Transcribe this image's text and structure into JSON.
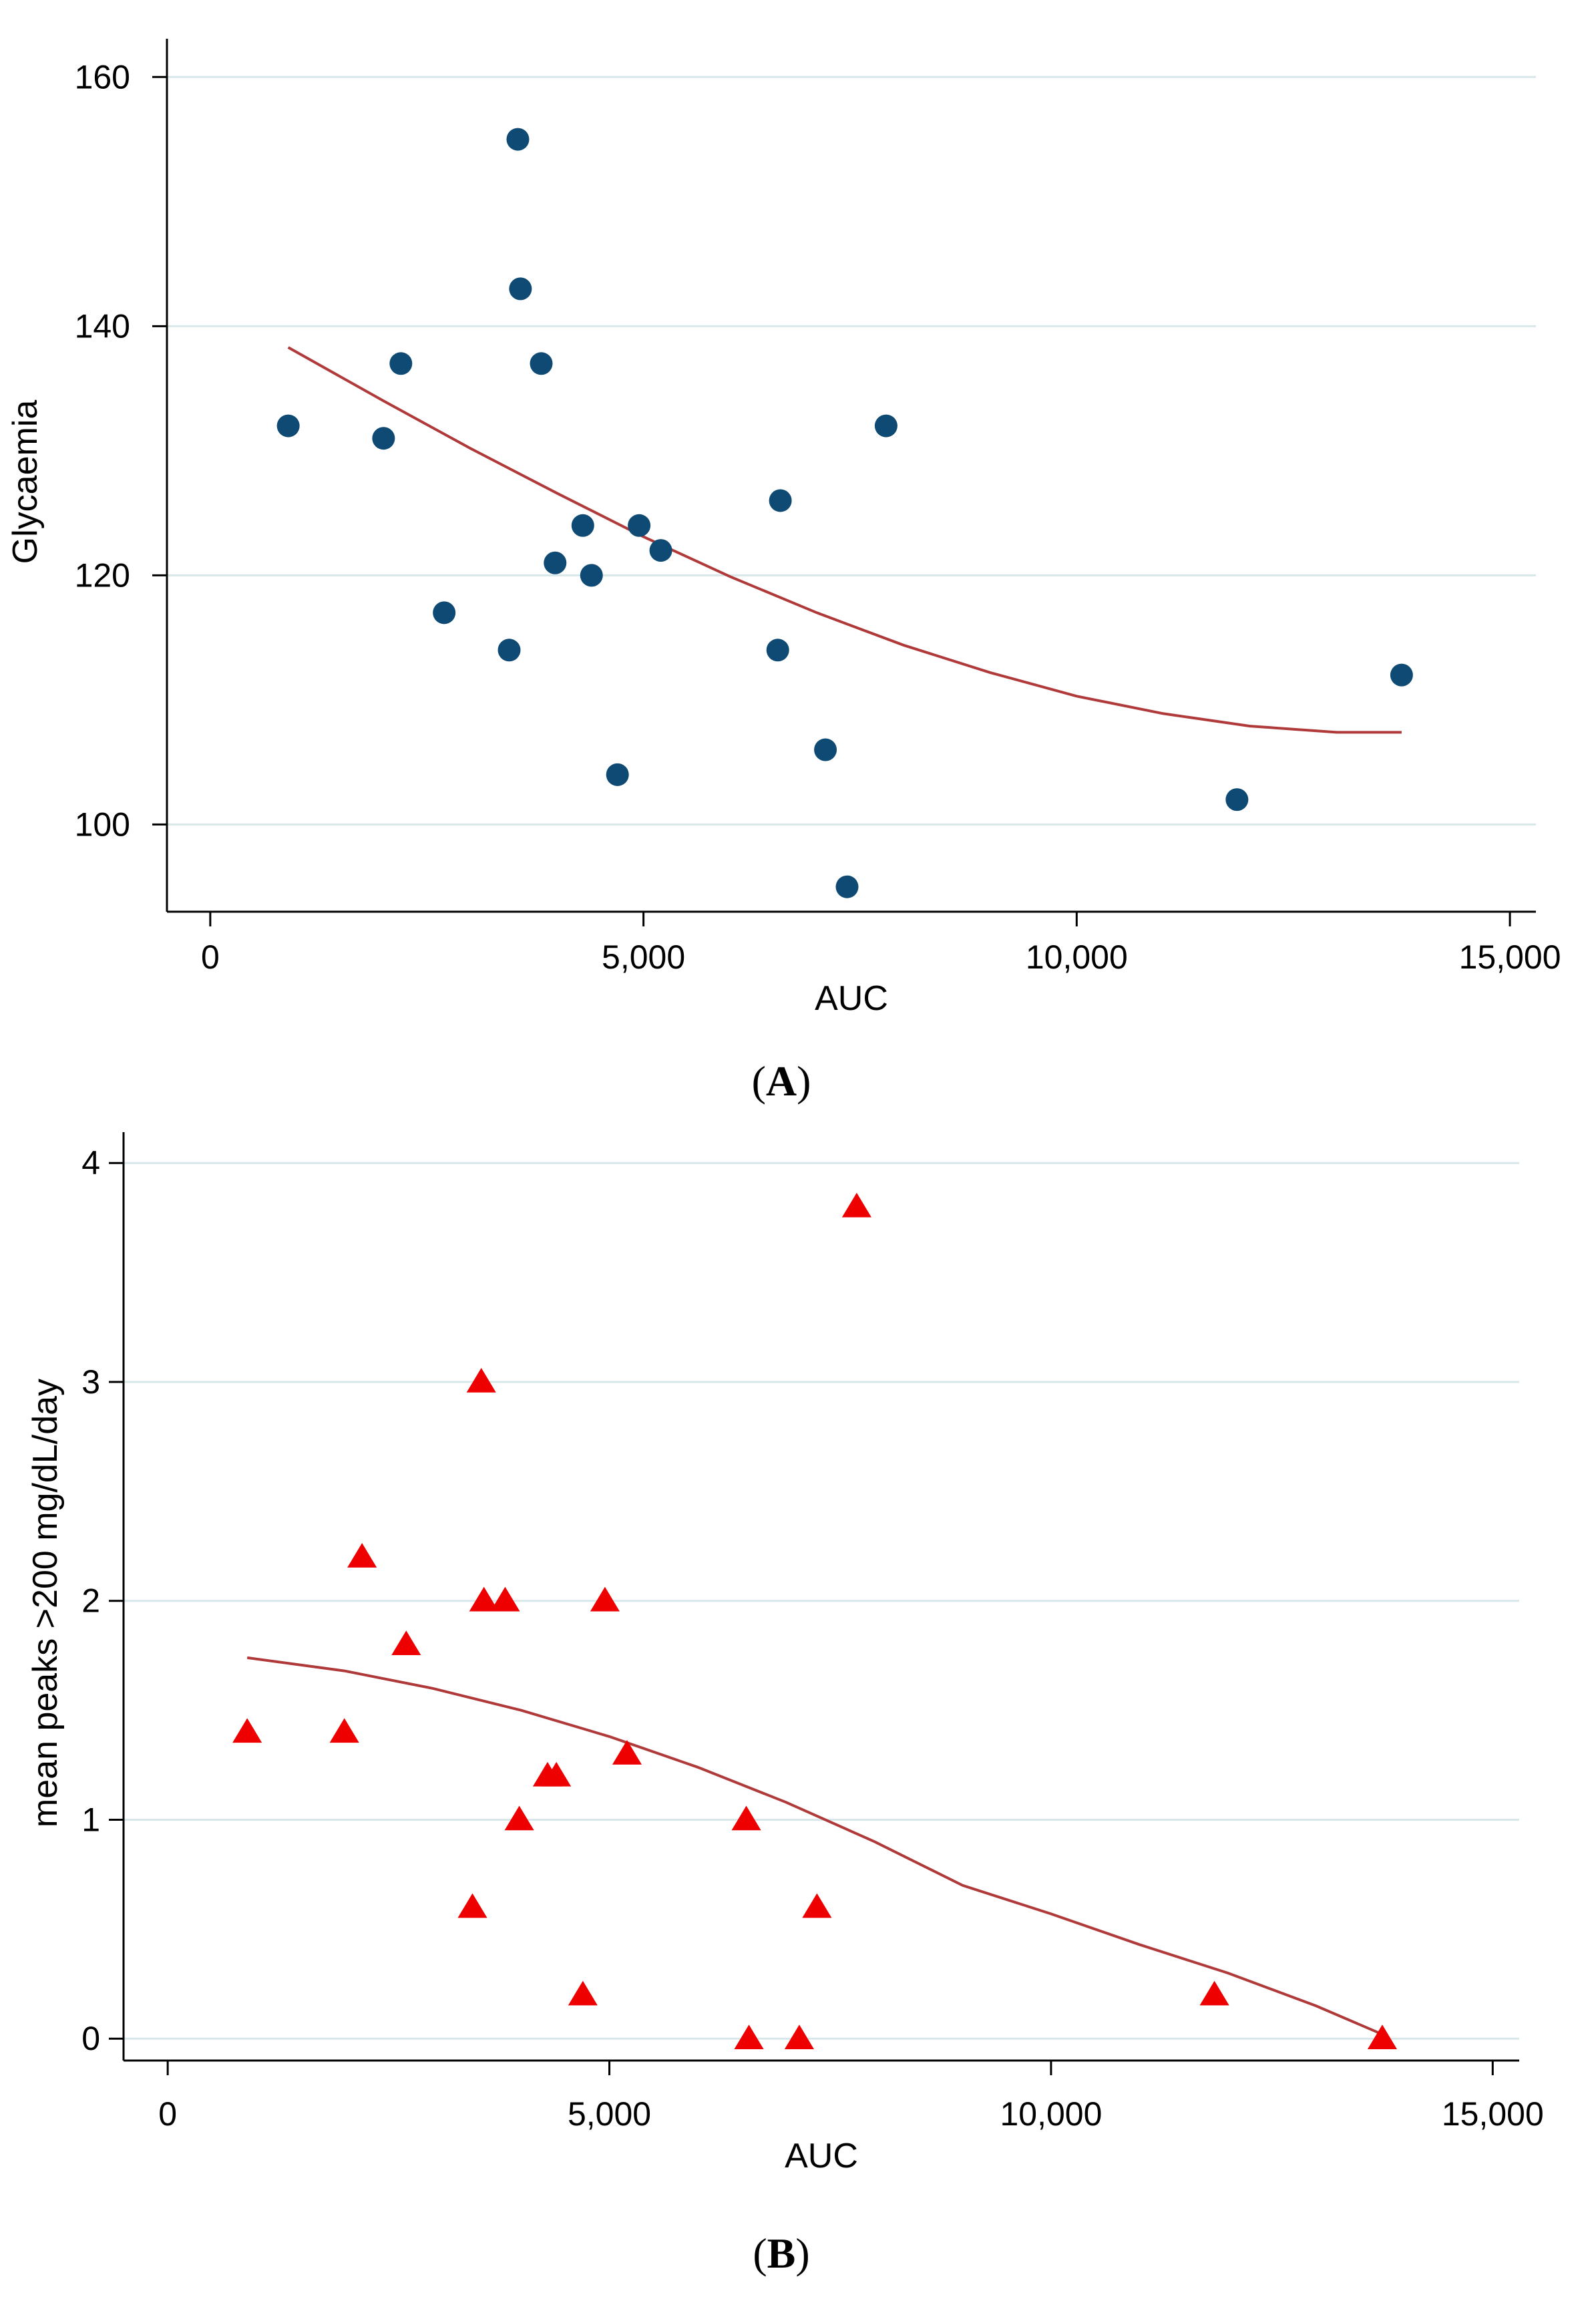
{
  "chart_data": [
    {
      "type": "scatter",
      "panel": "A",
      "xlabel": "AUC",
      "ylabel": "Glycaemia",
      "xlim": [
        -500,
        15300
      ],
      "ylim": [
        93,
        162
      ],
      "x_ticks": [
        0,
        5000,
        10000,
        15000
      ],
      "x_tick_labels": [
        "0",
        "5,000",
        "10,000",
        "15,000"
      ],
      "y_ticks": [
        100,
        120,
        140,
        160
      ],
      "y_tick_labels": [
        "100",
        "120",
        "140",
        "160"
      ],
      "grid": true,
      "marker": "circle",
      "marker_color": "#0e4a73",
      "line_color": "#b03a3a",
      "points": [
        {
          "x": 900,
          "y": 132
        },
        {
          "x": 2000,
          "y": 131
        },
        {
          "x": 2200,
          "y": 137
        },
        {
          "x": 2700,
          "y": 117
        },
        {
          "x": 3450,
          "y": 114
        },
        {
          "x": 3550,
          "y": 155
        },
        {
          "x": 3580,
          "y": 143
        },
        {
          "x": 3820,
          "y": 137
        },
        {
          "x": 3980,
          "y": 121
        },
        {
          "x": 4300,
          "y": 124
        },
        {
          "x": 4400,
          "y": 120
        },
        {
          "x": 4700,
          "y": 104
        },
        {
          "x": 4950,
          "y": 124
        },
        {
          "x": 5200,
          "y": 122
        },
        {
          "x": 6550,
          "y": 114
        },
        {
          "x": 6580,
          "y": 126
        },
        {
          "x": 7100,
          "y": 106
        },
        {
          "x": 7350,
          "y": 95
        },
        {
          "x": 7800,
          "y": 132
        },
        {
          "x": 11850,
          "y": 102
        },
        {
          "x": 13750,
          "y": 112
        }
      ],
      "fit_curve": [
        {
          "x": 900,
          "y": 138.3
        },
        {
          "x": 2000,
          "y": 134.0
        },
        {
          "x": 3000,
          "y": 130.2
        },
        {
          "x": 4000,
          "y": 126.6
        },
        {
          "x": 5000,
          "y": 123.1
        },
        {
          "x": 6000,
          "y": 119.9
        },
        {
          "x": 7000,
          "y": 117.0
        },
        {
          "x": 8000,
          "y": 114.4
        },
        {
          "x": 9000,
          "y": 112.2
        },
        {
          "x": 10000,
          "y": 110.3
        },
        {
          "x": 11000,
          "y": 108.9
        },
        {
          "x": 12000,
          "y": 107.9
        },
        {
          "x": 13000,
          "y": 107.4
        },
        {
          "x": 13750,
          "y": 107.4
        }
      ],
      "panel_label": "A"
    },
    {
      "type": "scatter",
      "panel": "B",
      "xlabel": "AUC",
      "ylabel": "mean peaks >200 mg/dL/day",
      "xlim": [
        -500,
        15300
      ],
      "ylim": [
        -0.1,
        4.08
      ],
      "x_ticks": [
        0,
        5000,
        10000,
        15000
      ],
      "x_tick_labels": [
        "0",
        "5,000",
        "10,000",
        "15,000"
      ],
      "y_ticks": [
        0,
        1,
        2,
        3,
        4
      ],
      "y_tick_labels": [
        "0",
        "1",
        "2",
        "3",
        "4"
      ],
      "grid": true,
      "marker": "triangle",
      "marker_color": "#ee0000",
      "line_color": "#b03a3a",
      "points": [
        {
          "x": 900,
          "y": 1.4
        },
        {
          "x": 2000,
          "y": 1.4
        },
        {
          "x": 2200,
          "y": 2.2
        },
        {
          "x": 2700,
          "y": 1.8
        },
        {
          "x": 3450,
          "y": 0.6
        },
        {
          "x": 3550,
          "y": 3.0
        },
        {
          "x": 3580,
          "y": 2.0
        },
        {
          "x": 3820,
          "y": 2.0
        },
        {
          "x": 3980,
          "y": 1.0
        },
        {
          "x": 4300,
          "y": 1.2
        },
        {
          "x": 4400,
          "y": 1.2
        },
        {
          "x": 4700,
          "y": 0.2
        },
        {
          "x": 4950,
          "y": 2.0
        },
        {
          "x": 5200,
          "y": 1.3
        },
        {
          "x": 6550,
          "y": 1.0
        },
        {
          "x": 6580,
          "y": 0.0
        },
        {
          "x": 7150,
          "y": 0.0
        },
        {
          "x": 7350,
          "y": 0.6
        },
        {
          "x": 7800,
          "y": 3.8
        },
        {
          "x": 11850,
          "y": 0.2
        },
        {
          "x": 13750,
          "y": 0.0
        }
      ],
      "fit_curve": [
        {
          "x": 900,
          "y": 1.74
        },
        {
          "x": 2000,
          "y": 1.68
        },
        {
          "x": 3000,
          "y": 1.6
        },
        {
          "x": 4000,
          "y": 1.5
        },
        {
          "x": 5000,
          "y": 1.38
        },
        {
          "x": 6000,
          "y": 1.24
        },
        {
          "x": 7000,
          "y": 1.08
        },
        {
          "x": 8000,
          "y": 0.9
        },
        {
          "x": 9000,
          "y": 0.7
        },
        {
          "x": 10000,
          "y": 0.57
        },
        {
          "x": 11000,
          "y": 0.43
        },
        {
          "x": 12000,
          "y": 0.3
        },
        {
          "x": 13000,
          "y": 0.15
        },
        {
          "x": 13750,
          "y": 0.02
        }
      ],
      "panel_label": "B"
    }
  ]
}
